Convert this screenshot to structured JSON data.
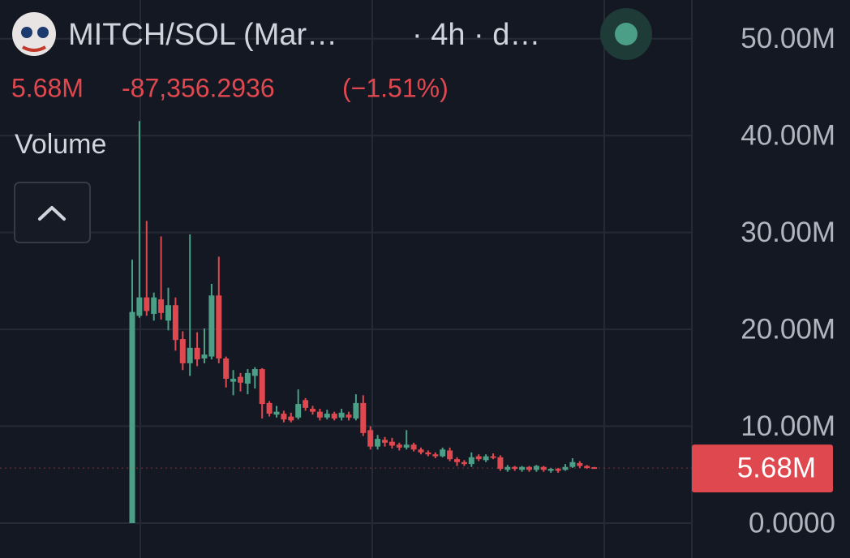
{
  "chart_data": {
    "type": "candlestick",
    "title": "MITCH/SOL (Mar…",
    "subtitle": "· 4h · d…",
    "last_price": {
      "value": 5680000,
      "label": "5.68M"
    },
    "change": {
      "value": -87356.2936,
      "label": "-87,356.2936"
    },
    "change_percent": {
      "value": -1.51,
      "label": "(−1.51%)"
    },
    "indicator": "Volume",
    "up_color": "#4a9f86",
    "down_color": "#e0484f",
    "grid": true,
    "ylim": [
      -3600000,
      54000000
    ],
    "yticks": [
      {
        "value": 0,
        "label": "0.0000"
      },
      {
        "value": 10000000,
        "label": "10.00M"
      },
      {
        "value": 20000000,
        "label": "20.00M"
      },
      {
        "value": 30000000,
        "label": "30.00M"
      },
      {
        "value": 40000000,
        "label": "40.00M"
      },
      {
        "value": 50000000,
        "label": "50.00M"
      }
    ],
    "open": [
      0,
      21400000,
      23300000,
      21600000,
      23100000,
      20900000,
      22500000,
      19000000,
      16500000,
      18100000,
      17000000,
      17200000,
      23500000,
      17000000,
      14600000,
      15100000,
      14400000,
      15200000,
      15900000,
      12400000,
      11200000,
      11300000,
      11000000,
      10900000,
      12700000,
      11800000,
      11500000,
      10900000,
      11300000,
      10900000,
      11200000,
      10800000,
      12400000,
      9600000,
      7900000,
      8600000,
      8400000,
      8100000,
      7800000,
      8100000,
      7600000,
      7300000,
      7100000,
      6900000,
      7500000,
      6600000,
      6300000,
      6100000,
      6900000,
      6500000,
      6900000,
      6800000,
      5500000,
      5800000,
      5500000,
      5800000,
      5500000,
      5800000,
      5400000,
      5600000,
      5500000,
      5800000,
      6200000,
      5900000,
      5770000
    ],
    "high": [
      27200000,
      41500000,
      31200000,
      23800000,
      29600000,
      24300000,
      23300000,
      19800000,
      29800000,
      19700000,
      20100000,
      24700000,
      27500000,
      17200000,
      15800000,
      15500000,
      15900000,
      16100000,
      16000000,
      12600000,
      12100000,
      11600000,
      11400000,
      13800000,
      12900000,
      12100000,
      11800000,
      11700000,
      11500000,
      11800000,
      11500000,
      13300000,
      13200000,
      10000000,
      9100000,
      8900000,
      8800000,
      8300000,
      9600000,
      8300000,
      7800000,
      7500000,
      7300000,
      7800000,
      7800000,
      6800000,
      6500000,
      7300000,
      7100000,
      7100000,
      7200000,
      7000000,
      6000000,
      5900000,
      5900000,
      5900000,
      6000000,
      5900000,
      5700000,
      5700000,
      6100000,
      6700000,
      6400000,
      6000000,
      5800000
    ],
    "low": [
      0,
      21200000,
      21400000,
      20900000,
      21000000,
      19900000,
      17800000,
      15800000,
      15200000,
      16200000,
      16500000,
      16900000,
      16500000,
      14000000,
      13200000,
      13600000,
      13300000,
      13900000,
      10800000,
      11000000,
      10900000,
      10400000,
      10400000,
      10700000,
      11600000,
      11200000,
      10600000,
      10700000,
      10600000,
      10600000,
      10600000,
      10600000,
      9000000,
      7600000,
      7600000,
      7900000,
      7700000,
      7500000,
      7600000,
      7400000,
      7100000,
      6900000,
      6700000,
      6800000,
      6400000,
      5900000,
      5900000,
      5800000,
      6400000,
      6300000,
      6600000,
      5400000,
      5300000,
      5400000,
      5300000,
      5300000,
      5300000,
      5300000,
      5200000,
      5200000,
      5400000,
      5700000,
      5700000,
      5600000,
      5600000
    ],
    "close": [
      21800000,
      23300000,
      21900000,
      23300000,
      21700000,
      22500000,
      18900000,
      16500000,
      18100000,
      16900000,
      17400000,
      23500000,
      17000000,
      14900000,
      14900000,
      14500000,
      15500000,
      15900000,
      12300000,
      11300000,
      11500000,
      10700000,
      10600000,
      12300000,
      11900000,
      11500000,
      10900000,
      11300000,
      10800000,
      11400000,
      10900000,
      12400000,
      9300000,
      7900000,
      8700000,
      8300000,
      8000000,
      7800000,
      8100000,
      7600000,
      7300000,
      7100000,
      6900000,
      7600000,
      6600000,
      6300000,
      6100000,
      6800000,
      6600000,
      6900000,
      6800000,
      5600000,
      5800000,
      5600000,
      5800000,
      5500000,
      5900000,
      5500000,
      5600000,
      5400000,
      5800000,
      6300000,
      5900000,
      5700000,
      5680000
    ]
  }
}
